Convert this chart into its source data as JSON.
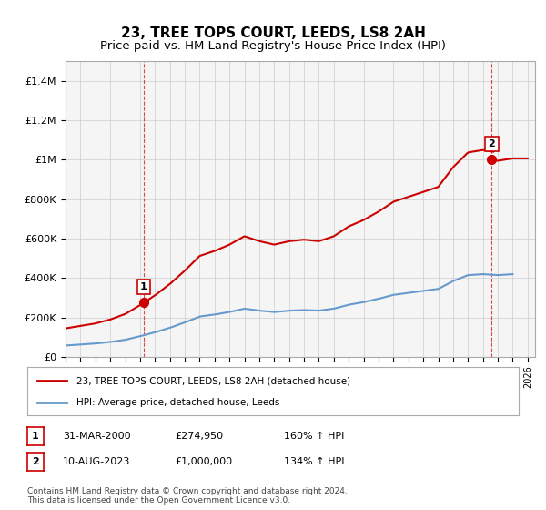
{
  "title": "23, TREE TOPS COURT, LEEDS, LS8 2AH",
  "subtitle": "Price paid vs. HM Land Registry's House Price Index (HPI)",
  "title_fontsize": 11,
  "subtitle_fontsize": 9.5,
  "ylabel_ticks": [
    "£0",
    "£200K",
    "£400K",
    "£600K",
    "£800K",
    "£1M",
    "£1.2M",
    "£1.4M"
  ],
  "ytick_values": [
    0,
    200000,
    400000,
    600000,
    800000,
    1000000,
    1200000,
    1400000
  ],
  "ylim": [
    0,
    1500000
  ],
  "xlim_start": 1995.0,
  "xlim_end": 2026.5,
  "sale1_date": 2000.25,
  "sale1_price": 274950,
  "sale2_date": 2023.6,
  "sale2_price": 1000000,
  "red_line_color": "#cc0000",
  "blue_line_color": "#6699cc",
  "vline_color": "#cc0000",
  "annotation_box_color": "#cc0000",
  "grid_color": "#cccccc",
  "bg_color": "#ffffff",
  "plot_bg_color": "#f5f5f5",
  "legend_entry1": "23, TREE TOPS COURT, LEEDS, LS8 2AH (detached house)",
  "legend_entry2": "HPI: Average price, detached house, Leeds",
  "table_row1": [
    "1",
    "31-MAR-2000",
    "£274,950",
    "160% ↑ HPI"
  ],
  "table_row2": [
    "2",
    "10-AUG-2023",
    "£1,000,000",
    "134% ↑ HPI"
  ],
  "footnote": "Contains HM Land Registry data © Crown copyright and database right 2024.\nThis data is licensed under the Open Government Licence v3.0.",
  "hpi_base_years": [
    1995.0,
    1996.0,
    1997.0,
    1998.0,
    1999.0,
    2000.0,
    2001.0,
    2002.0,
    2003.0,
    2004.0,
    2005.0,
    2006.0,
    2007.0,
    2008.0,
    2009.0,
    2010.0,
    2011.0,
    2012.0,
    2013.0,
    2014.0,
    2015.0,
    2016.0,
    2017.0,
    2018.0,
    2019.0,
    2020.0,
    2021.0,
    2022.0,
    2023.0,
    2024.0,
    2025.0
  ],
  "hpi_leeds_detached": [
    58000,
    63000,
    68000,
    76000,
    87000,
    105000,
    125000,
    148000,
    175000,
    205000,
    215000,
    228000,
    245000,
    235000,
    228000,
    235000,
    238000,
    235000,
    245000,
    265000,
    278000,
    295000,
    315000,
    325000,
    335000,
    345000,
    385000,
    415000,
    420000,
    415000,
    420000
  ]
}
